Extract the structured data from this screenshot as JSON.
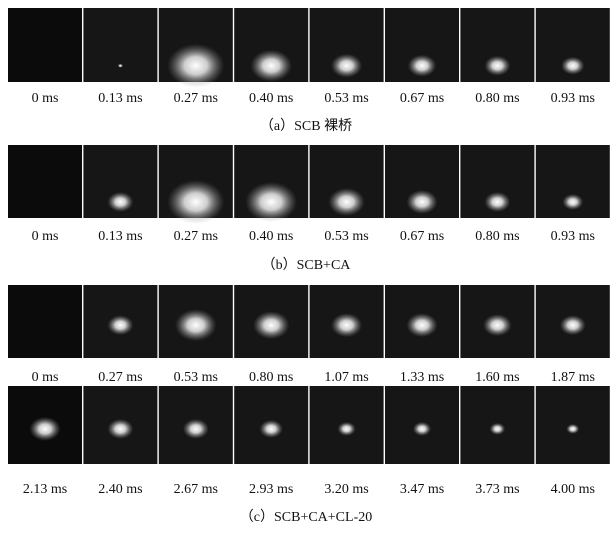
{
  "panels": [
    {
      "rows": [
        {
          "times": [
            "0 ms",
            "0.13 ms",
            "0.27 ms",
            "0.40 ms",
            "0.53 ms",
            "0.67 ms",
            "0.80 ms",
            "0.93 ms"
          ]
        }
      ],
      "caption": "（a）SCB 裸桥"
    },
    {
      "rows": [
        {
          "times": [
            "0 ms",
            "0.13 ms",
            "0.27 ms",
            "0.40 ms",
            "0.53 ms",
            "0.67 ms",
            "0.80 ms",
            "0.93 ms"
          ]
        }
      ],
      "caption": "（b）SCB+CA"
    },
    {
      "rows": [
        {
          "times": [
            "0 ms",
            "0.27 ms",
            "0.53 ms",
            "0.80 ms",
            "1.07 ms",
            "1.33 ms",
            "1.60 ms",
            "1.87 ms"
          ]
        },
        {
          "times": [
            "2.13 ms",
            "2.40 ms",
            "2.67 ms",
            "2.93 ms",
            "3.20 ms",
            "3.47 ms",
            "3.73 ms",
            "4.00 ms"
          ]
        }
      ],
      "caption": "（c）SCB+CA+CL-20"
    }
  ]
}
